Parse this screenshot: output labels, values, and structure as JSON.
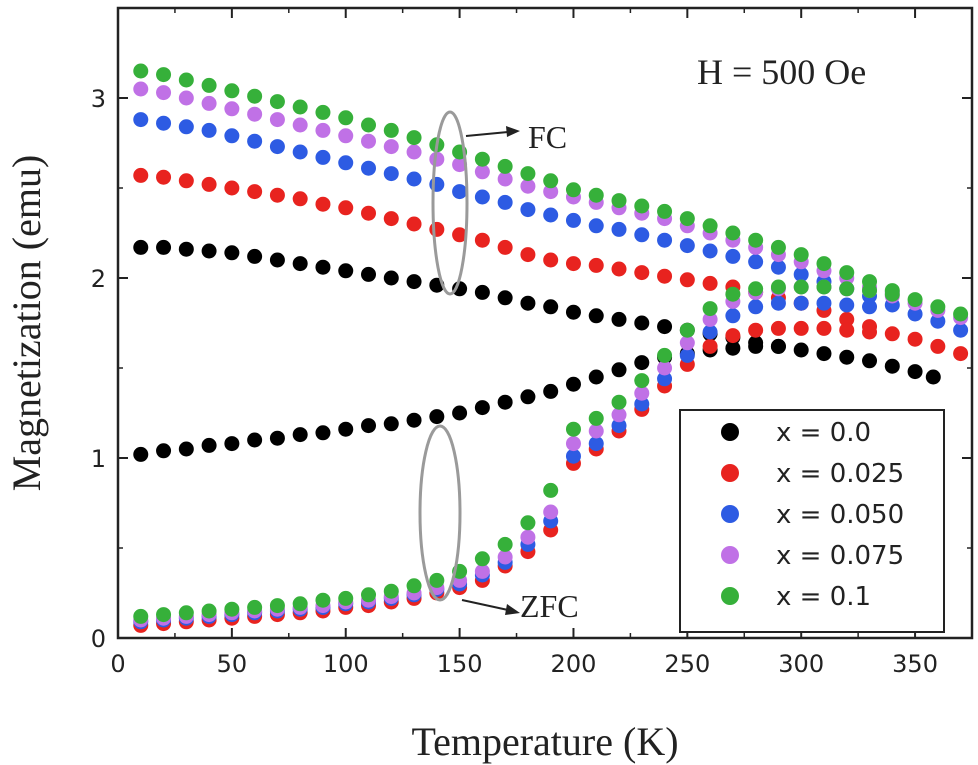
{
  "chart_data": {
    "type": "scatter",
    "xlabel": "Temperature (K)",
    "ylabel": "Magnetization (emu)",
    "xlim": [
      0,
      375
    ],
    "ylim": [
      0,
      3.5
    ],
    "xticks": [
      0,
      50,
      100,
      150,
      200,
      250,
      300,
      350
    ],
    "yticks": [
      0,
      1,
      2,
      3
    ],
    "grid": false,
    "legend_position": "bottom-right",
    "annotations": {
      "field": "H = 500 Oe",
      "fc_label": "FC",
      "zfc_label": "ZFC"
    },
    "series": [
      {
        "name": "x = 0.0",
        "color": "#000000",
        "fc": {
          "x": [
            10,
            20,
            30,
            40,
            50,
            60,
            70,
            80,
            90,
            100,
            110,
            120,
            130,
            140,
            150,
            160,
            170,
            180,
            190,
            200,
            210,
            220,
            230,
            240,
            250,
            260,
            270,
            280,
            290,
            300,
            310,
            320,
            330,
            340,
            350,
            358
          ],
          "y": [
            2.17,
            2.17,
            2.16,
            2.15,
            2.14,
            2.12,
            2.1,
            2.08,
            2.06,
            2.04,
            2.02,
            2.0,
            1.98,
            1.96,
            1.94,
            1.92,
            1.89,
            1.86,
            1.84,
            1.81,
            1.79,
            1.77,
            1.75,
            1.73,
            1.71,
            1.69,
            1.67,
            1.64,
            1.62,
            1.6,
            1.58,
            1.56,
            1.54,
            1.51,
            1.48,
            1.45
          ]
        },
        "zfc": {
          "x": [
            10,
            20,
            30,
            40,
            50,
            60,
            70,
            80,
            90,
            100,
            110,
            120,
            130,
            140,
            150,
            160,
            170,
            180,
            190,
            200,
            210,
            220,
            230,
            240,
            250,
            260,
            270,
            280,
            290
          ],
          "y": [
            1.02,
            1.04,
            1.05,
            1.07,
            1.08,
            1.1,
            1.11,
            1.13,
            1.14,
            1.16,
            1.18,
            1.19,
            1.21,
            1.23,
            1.25,
            1.28,
            1.31,
            1.34,
            1.37,
            1.41,
            1.45,
            1.49,
            1.53,
            1.56,
            1.58,
            1.6,
            1.61,
            1.62,
            1.62
          ]
        }
      },
      {
        "name": "x = 0.025",
        "color": "#e8231f",
        "fc": {
          "x": [
            10,
            20,
            30,
            40,
            50,
            60,
            70,
            80,
            90,
            100,
            110,
            120,
            130,
            140,
            150,
            160,
            170,
            180,
            190,
            200,
            210,
            220,
            230,
            240,
            250,
            260,
            270,
            280,
            290,
            300,
            310,
            320,
            330,
            340,
            350,
            360,
            370
          ],
          "y": [
            2.57,
            2.56,
            2.54,
            2.52,
            2.5,
            2.48,
            2.46,
            2.44,
            2.41,
            2.39,
            2.36,
            2.33,
            2.3,
            2.27,
            2.24,
            2.21,
            2.17,
            2.13,
            2.1,
            2.08,
            2.07,
            2.05,
            2.03,
            2.01,
            1.99,
            1.97,
            1.95,
            1.92,
            1.89,
            1.86,
            1.82,
            1.77,
            1.73,
            1.69,
            1.66,
            1.62,
            1.58
          ]
        },
        "zfc": {
          "x": [
            10,
            20,
            30,
            40,
            50,
            60,
            70,
            80,
            90,
            100,
            110,
            120,
            130,
            140,
            150,
            160,
            170,
            180,
            190,
            200,
            210,
            220,
            230,
            240,
            250,
            260,
            270,
            280,
            290,
            300,
            310,
            320,
            330
          ],
          "y": [
            0.07,
            0.08,
            0.09,
            0.1,
            0.11,
            0.12,
            0.13,
            0.14,
            0.15,
            0.17,
            0.18,
            0.2,
            0.22,
            0.25,
            0.28,
            0.32,
            0.4,
            0.48,
            0.6,
            0.97,
            1.05,
            1.15,
            1.27,
            1.4,
            1.52,
            1.62,
            1.68,
            1.71,
            1.72,
            1.72,
            1.72,
            1.71,
            1.7
          ]
        }
      },
      {
        "name": "x = 0.050",
        "color": "#2d5be3",
        "fc": {
          "x": [
            10,
            20,
            30,
            40,
            50,
            60,
            70,
            80,
            90,
            100,
            110,
            120,
            130,
            140,
            150,
            160,
            170,
            180,
            190,
            200,
            210,
            220,
            230,
            240,
            250,
            260,
            270,
            280,
            290,
            300,
            310,
            320,
            330,
            340,
            350,
            360,
            370
          ],
          "y": [
            2.88,
            2.86,
            2.84,
            2.82,
            2.79,
            2.76,
            2.73,
            2.7,
            2.67,
            2.64,
            2.61,
            2.58,
            2.55,
            2.52,
            2.48,
            2.45,
            2.42,
            2.38,
            2.35,
            2.32,
            2.29,
            2.27,
            2.24,
            2.21,
            2.18,
            2.15,
            2.12,
            2.09,
            2.06,
            2.02,
            1.98,
            1.94,
            1.9,
            1.85,
            1.8,
            1.76,
            1.71
          ]
        },
        "zfc": {
          "x": [
            10,
            20,
            30,
            40,
            50,
            60,
            70,
            80,
            90,
            100,
            110,
            120,
            130,
            140,
            150,
            160,
            170,
            180,
            190,
            200,
            210,
            220,
            230,
            240,
            250,
            260,
            270,
            280,
            290,
            300,
            310,
            320,
            330
          ],
          "y": [
            0.09,
            0.1,
            0.11,
            0.12,
            0.13,
            0.14,
            0.15,
            0.16,
            0.17,
            0.19,
            0.2,
            0.22,
            0.24,
            0.27,
            0.3,
            0.35,
            0.42,
            0.52,
            0.65,
            1.01,
            1.08,
            1.18,
            1.3,
            1.44,
            1.57,
            1.7,
            1.79,
            1.84,
            1.86,
            1.86,
            1.86,
            1.85,
            1.84
          ]
        }
      },
      {
        "name": "x = 0.075",
        "color": "#c071e6",
        "fc": {
          "x": [
            10,
            20,
            30,
            40,
            50,
            60,
            70,
            80,
            90,
            100,
            110,
            120,
            130,
            140,
            150,
            160,
            170,
            180,
            190,
            200,
            210,
            220,
            230,
            240,
            250,
            260,
            270,
            280,
            290,
            300,
            310,
            320,
            330,
            340,
            350,
            360,
            370
          ],
          "y": [
            3.05,
            3.03,
            3.0,
            2.97,
            2.94,
            2.91,
            2.88,
            2.85,
            2.82,
            2.79,
            2.76,
            2.73,
            2.7,
            2.66,
            2.63,
            2.59,
            2.55,
            2.51,
            2.48,
            2.45,
            2.42,
            2.39,
            2.36,
            2.33,
            2.29,
            2.25,
            2.21,
            2.17,
            2.13,
            2.09,
            2.04,
            2.0,
            1.95,
            1.9,
            1.86,
            1.82,
            1.78
          ]
        },
        "zfc": {
          "x": [
            10,
            20,
            30,
            40,
            50,
            60,
            70,
            80,
            90,
            100,
            110,
            120,
            130,
            140,
            150,
            160,
            170,
            180,
            190,
            200,
            210,
            220,
            230,
            240,
            250,
            260,
            270,
            280,
            290,
            300,
            310,
            320,
            330,
            340
          ],
          "y": [
            0.1,
            0.11,
            0.12,
            0.13,
            0.14,
            0.15,
            0.16,
            0.17,
            0.18,
            0.2,
            0.21,
            0.23,
            0.25,
            0.28,
            0.32,
            0.37,
            0.45,
            0.56,
            0.7,
            1.08,
            1.15,
            1.24,
            1.36,
            1.5,
            1.64,
            1.77,
            1.87,
            1.92,
            1.94,
            1.95,
            1.95,
            1.94,
            1.93,
            1.92
          ]
        }
      },
      {
        "name": "x = 0.1",
        "color": "#36b03a",
        "fc": {
          "x": [
            10,
            20,
            30,
            40,
            50,
            60,
            70,
            80,
            90,
            100,
            110,
            120,
            130,
            140,
            150,
            160,
            170,
            180,
            190,
            200,
            210,
            220,
            230,
            240,
            250,
            260,
            270,
            280,
            290,
            300,
            310,
            320,
            330,
            340,
            350,
            360,
            370
          ],
          "y": [
            3.15,
            3.13,
            3.1,
            3.07,
            3.04,
            3.01,
            2.98,
            2.95,
            2.92,
            2.89,
            2.85,
            2.82,
            2.78,
            2.74,
            2.7,
            2.66,
            2.62,
            2.58,
            2.54,
            2.49,
            2.46,
            2.43,
            2.4,
            2.37,
            2.33,
            2.29,
            2.25,
            2.21,
            2.17,
            2.13,
            2.08,
            2.03,
            1.98,
            1.93,
            1.88,
            1.84,
            1.8
          ]
        },
        "zfc": {
          "x": [
            10,
            20,
            30,
            40,
            50,
            60,
            70,
            80,
            90,
            100,
            110,
            120,
            130,
            140,
            150,
            160,
            170,
            180,
            190,
            200,
            210,
            220,
            230,
            240,
            250,
            260,
            270,
            280,
            290,
            300,
            310,
            320,
            330,
            340
          ],
          "y": [
            0.12,
            0.13,
            0.14,
            0.15,
            0.16,
            0.17,
            0.18,
            0.19,
            0.21,
            0.22,
            0.24,
            0.26,
            0.29,
            0.32,
            0.37,
            0.44,
            0.52,
            0.64,
            0.82,
            1.16,
            1.22,
            1.31,
            1.43,
            1.57,
            1.71,
            1.83,
            1.91,
            1.94,
            1.95,
            1.95,
            1.95,
            1.94,
            1.93,
            1.91
          ]
        }
      }
    ]
  }
}
